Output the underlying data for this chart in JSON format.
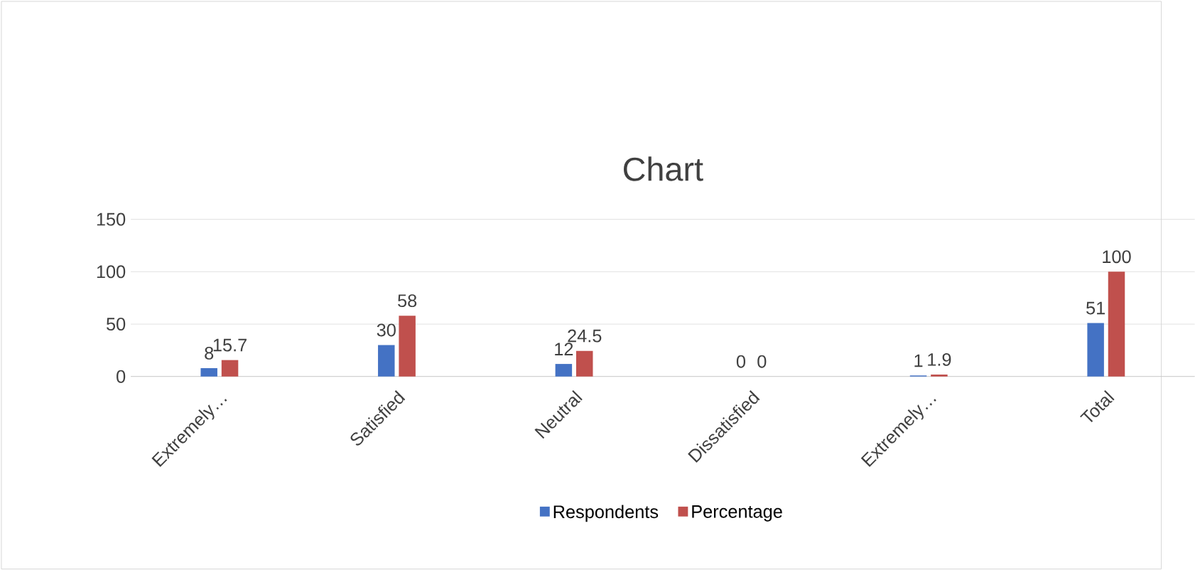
{
  "chart_data": {
    "type": "bar",
    "title": "Chart",
    "categories": [
      "Extremely…",
      "Satisfied",
      "Neutral",
      "Dissatisfied",
      "Extremely…",
      "Total"
    ],
    "series": [
      {
        "name": "Respondents",
        "color": "#4472c4",
        "values": [
          8,
          30,
          12,
          0,
          1,
          51
        ]
      },
      {
        "name": "Percentage",
        "color": "#c0504d",
        "values": [
          15.7,
          58,
          24.5,
          0,
          1.9,
          100
        ]
      }
    ],
    "ylim": [
      0,
      150
    ],
    "yticks": [
      0,
      50,
      100,
      150
    ],
    "grid": "y",
    "legend": "bottom",
    "data_labels": true
  }
}
